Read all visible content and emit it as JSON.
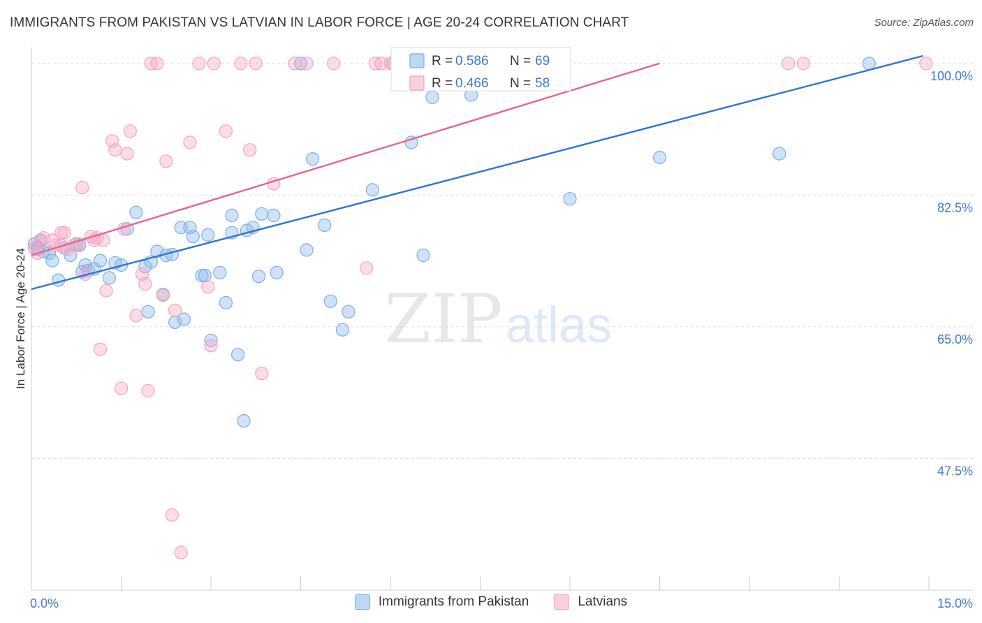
{
  "title": "IMMIGRANTS FROM PAKISTAN VS LATVIAN IN LABOR FORCE | AGE 20-24 CORRELATION CHART",
  "source": "Source: ZipAtlas.com",
  "watermark": {
    "zip": "ZIP",
    "atlas": "atlas"
  },
  "chart_data": {
    "type": "scatter",
    "xlabel": "",
    "ylabel": "In Labor Force | Age 20-24",
    "xlim": [
      0,
      15
    ],
    "ylim": [
      30,
      101
    ],
    "x_tick_labels": [
      "0.0%",
      "15.0%"
    ],
    "y_ticks": [
      47.5,
      65.0,
      82.5,
      100.0
    ],
    "y_tick_labels": [
      "47.5%",
      "65.0%",
      "82.5%",
      "100.0%"
    ],
    "grid": true,
    "legend_position": "top-center",
    "series": [
      {
        "name": "Immigrants from Pakistan",
        "color": "#7aaee8",
        "line_color": "#2f74d0",
        "R": "0.586",
        "N": "69",
        "trend": {
          "x": [
            0,
            14.9
          ],
          "y": [
            70.0,
            101.0
          ]
        },
        "points": [
          [
            0.05,
            76.0
          ],
          [
            0.1,
            75.3
          ],
          [
            0.15,
            76.5
          ],
          [
            0.2,
            75.0
          ],
          [
            0.3,
            74.8
          ],
          [
            0.35,
            73.8
          ],
          [
            0.45,
            71.2
          ],
          [
            0.55,
            75.5
          ],
          [
            0.65,
            74.5
          ],
          [
            0.75,
            76.0
          ],
          [
            0.8,
            75.8
          ],
          [
            0.85,
            72.3
          ],
          [
            0.9,
            73.2
          ],
          [
            0.95,
            72.5
          ],
          [
            1.05,
            72.7
          ],
          [
            1.15,
            73.8
          ],
          [
            1.3,
            71.5
          ],
          [
            1.4,
            73.5
          ],
          [
            1.5,
            73.2
          ],
          [
            1.6,
            78.0
          ],
          [
            1.75,
            80.2
          ],
          [
            1.9,
            73.0
          ],
          [
            1.95,
            67.0
          ],
          [
            2.0,
            73.6
          ],
          [
            2.1,
            75.0
          ],
          [
            2.2,
            69.3
          ],
          [
            2.25,
            74.5
          ],
          [
            2.35,
            74.6
          ],
          [
            2.4,
            65.6
          ],
          [
            2.5,
            78.2
          ],
          [
            2.55,
            66.0
          ],
          [
            2.65,
            78.2
          ],
          [
            2.7,
            77.0
          ],
          [
            2.85,
            71.8
          ],
          [
            2.9,
            71.8
          ],
          [
            2.95,
            77.2
          ],
          [
            3.0,
            63.2
          ],
          [
            3.15,
            72.2
          ],
          [
            3.25,
            68.2
          ],
          [
            3.35,
            79.8
          ],
          [
            3.35,
            77.5
          ],
          [
            3.45,
            61.3
          ],
          [
            3.55,
            52.5
          ],
          [
            3.6,
            77.8
          ],
          [
            3.7,
            78.2
          ],
          [
            3.8,
            71.7
          ],
          [
            3.85,
            80.0
          ],
          [
            4.05,
            79.8
          ],
          [
            4.1,
            72.2
          ],
          [
            4.5,
            100.0
          ],
          [
            4.6,
            75.2
          ],
          [
            4.7,
            87.3
          ],
          [
            4.9,
            78.5
          ],
          [
            5.0,
            68.4
          ],
          [
            5.2,
            64.6
          ],
          [
            5.3,
            67.0
          ],
          [
            5.7,
            83.2
          ],
          [
            6.05,
            100.0
          ],
          [
            6.35,
            89.5
          ],
          [
            6.55,
            74.5
          ],
          [
            6.6,
            100.0
          ],
          [
            6.7,
            95.5
          ],
          [
            7.0,
            100.0
          ],
          [
            7.35,
            95.8
          ],
          [
            9.0,
            82.0
          ],
          [
            10.5,
            87.5
          ],
          [
            12.5,
            88.0
          ],
          [
            14.0,
            100.0
          ],
          [
            0.1,
            75.6
          ]
        ]
      },
      {
        "name": "Latvians",
        "color": "#f5a3bd",
        "line_color": "#e0678e",
        "R": "0.466",
        "N": "58",
        "trend": {
          "x": [
            0,
            10.5
          ],
          "y": [
            74.5,
            100.0
          ]
        },
        "points": [
          [
            0.05,
            75.5
          ],
          [
            0.1,
            74.8
          ],
          [
            0.15,
            76.3
          ],
          [
            0.2,
            76.8
          ],
          [
            0.35,
            76.5
          ],
          [
            0.4,
            75.8
          ],
          [
            0.5,
            75.8
          ],
          [
            0.5,
            77.5
          ],
          [
            0.55,
            77.5
          ],
          [
            0.6,
            75.3
          ],
          [
            0.7,
            75.8
          ],
          [
            0.8,
            76.0
          ],
          [
            0.85,
            83.5
          ],
          [
            0.9,
            72.0
          ],
          [
            1.0,
            77.0
          ],
          [
            1.05,
            76.5
          ],
          [
            1.1,
            76.8
          ],
          [
            1.15,
            62.0
          ],
          [
            1.2,
            76.5
          ],
          [
            1.25,
            69.8
          ],
          [
            1.35,
            89.7
          ],
          [
            1.4,
            88.5
          ],
          [
            1.5,
            56.8
          ],
          [
            1.55,
            78.0
          ],
          [
            1.6,
            88.0
          ],
          [
            1.65,
            91.0
          ],
          [
            1.75,
            66.5
          ],
          [
            1.85,
            72.0
          ],
          [
            1.9,
            70.7
          ],
          [
            1.95,
            56.5
          ],
          [
            2.0,
            100.0
          ],
          [
            2.1,
            100.0
          ],
          [
            2.2,
            69.2
          ],
          [
            2.25,
            87.0
          ],
          [
            2.35,
            40.0
          ],
          [
            2.4,
            67.2
          ],
          [
            2.5,
            35.0
          ],
          [
            2.65,
            89.5
          ],
          [
            2.8,
            100.0
          ],
          [
            2.95,
            70.3
          ],
          [
            3.0,
            62.5
          ],
          [
            3.05,
            100.0
          ],
          [
            3.25,
            91.0
          ],
          [
            3.5,
            100.0
          ],
          [
            3.65,
            88.5
          ],
          [
            3.75,
            100.0
          ],
          [
            3.85,
            58.8
          ],
          [
            4.05,
            84.0
          ],
          [
            4.4,
            100.0
          ],
          [
            4.6,
            100.0
          ],
          [
            5.05,
            100.0
          ],
          [
            5.6,
            72.8
          ],
          [
            5.75,
            100.0
          ],
          [
            5.85,
            100.0
          ],
          [
            6.0,
            100.0
          ],
          [
            12.65,
            100.0
          ],
          [
            12.9,
            100.0
          ],
          [
            14.95,
            100.0
          ]
        ]
      }
    ]
  }
}
